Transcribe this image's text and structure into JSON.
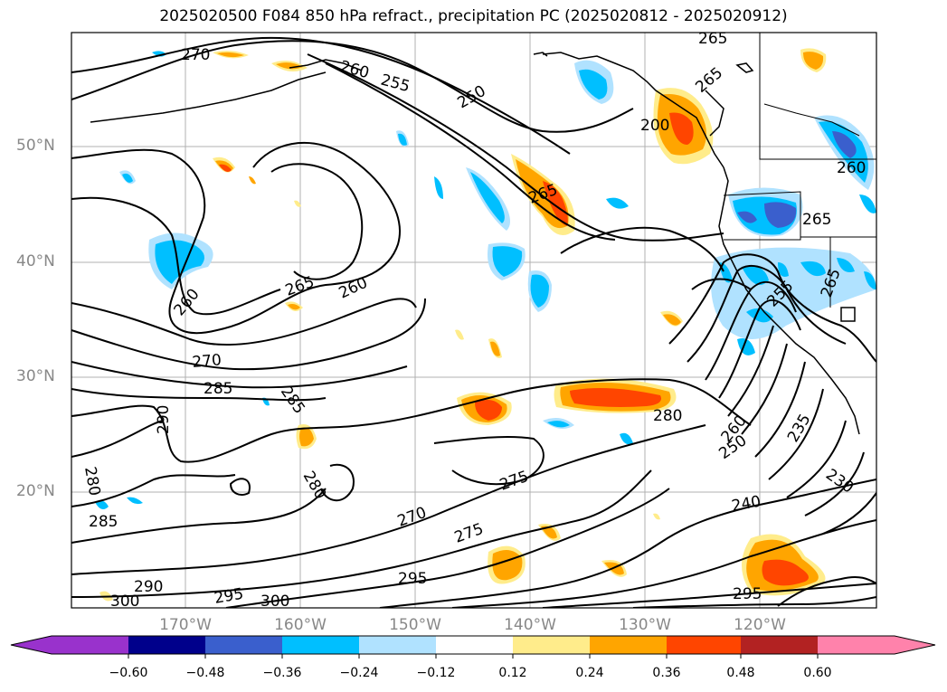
{
  "title": "2025020500 F084 850 hPa refract., precipitation PC (2025020812 - 2025020912)",
  "map": {
    "lat_labels": [
      "50°N",
      "40°N",
      "30°N",
      "20°N"
    ],
    "lon_labels": [
      "170°W",
      "160°W",
      "150°W",
      "140°W",
      "130°W",
      "120°W"
    ],
    "contour_labels": [
      "270",
      "260",
      "255",
      "250",
      "265",
      "265",
      "200",
      "260",
      "265",
      "260",
      "265",
      "260",
      "265",
      "255",
      "265",
      "270",
      "285",
      "285",
      "290",
      "280",
      "235",
      "260",
      "250",
      "230",
      "275",
      "280",
      "240",
      "280",
      "285",
      "275",
      "270",
      "295",
      "290",
      "295",
      "300",
      "300",
      "295"
    ],
    "contour_line_color": "#000000",
    "coastline_color": "#000000",
    "grid_color": "#b0b0b0"
  },
  "colorbar": {
    "tick_labels": [
      "−0.60",
      "−0.48",
      "−0.36",
      "−0.24",
      "−0.12",
      "0.12",
      "0.24",
      "0.36",
      "0.48",
      "0.60"
    ],
    "colors": [
      "#9932cc",
      "#00008b",
      "#3a5fcd",
      "#00bfff",
      "#b0e2ff",
      "#ffffff",
      "#ffec8b",
      "#ffa500",
      "#ff4500",
      "#b22222",
      "#ff82ab"
    ]
  }
}
